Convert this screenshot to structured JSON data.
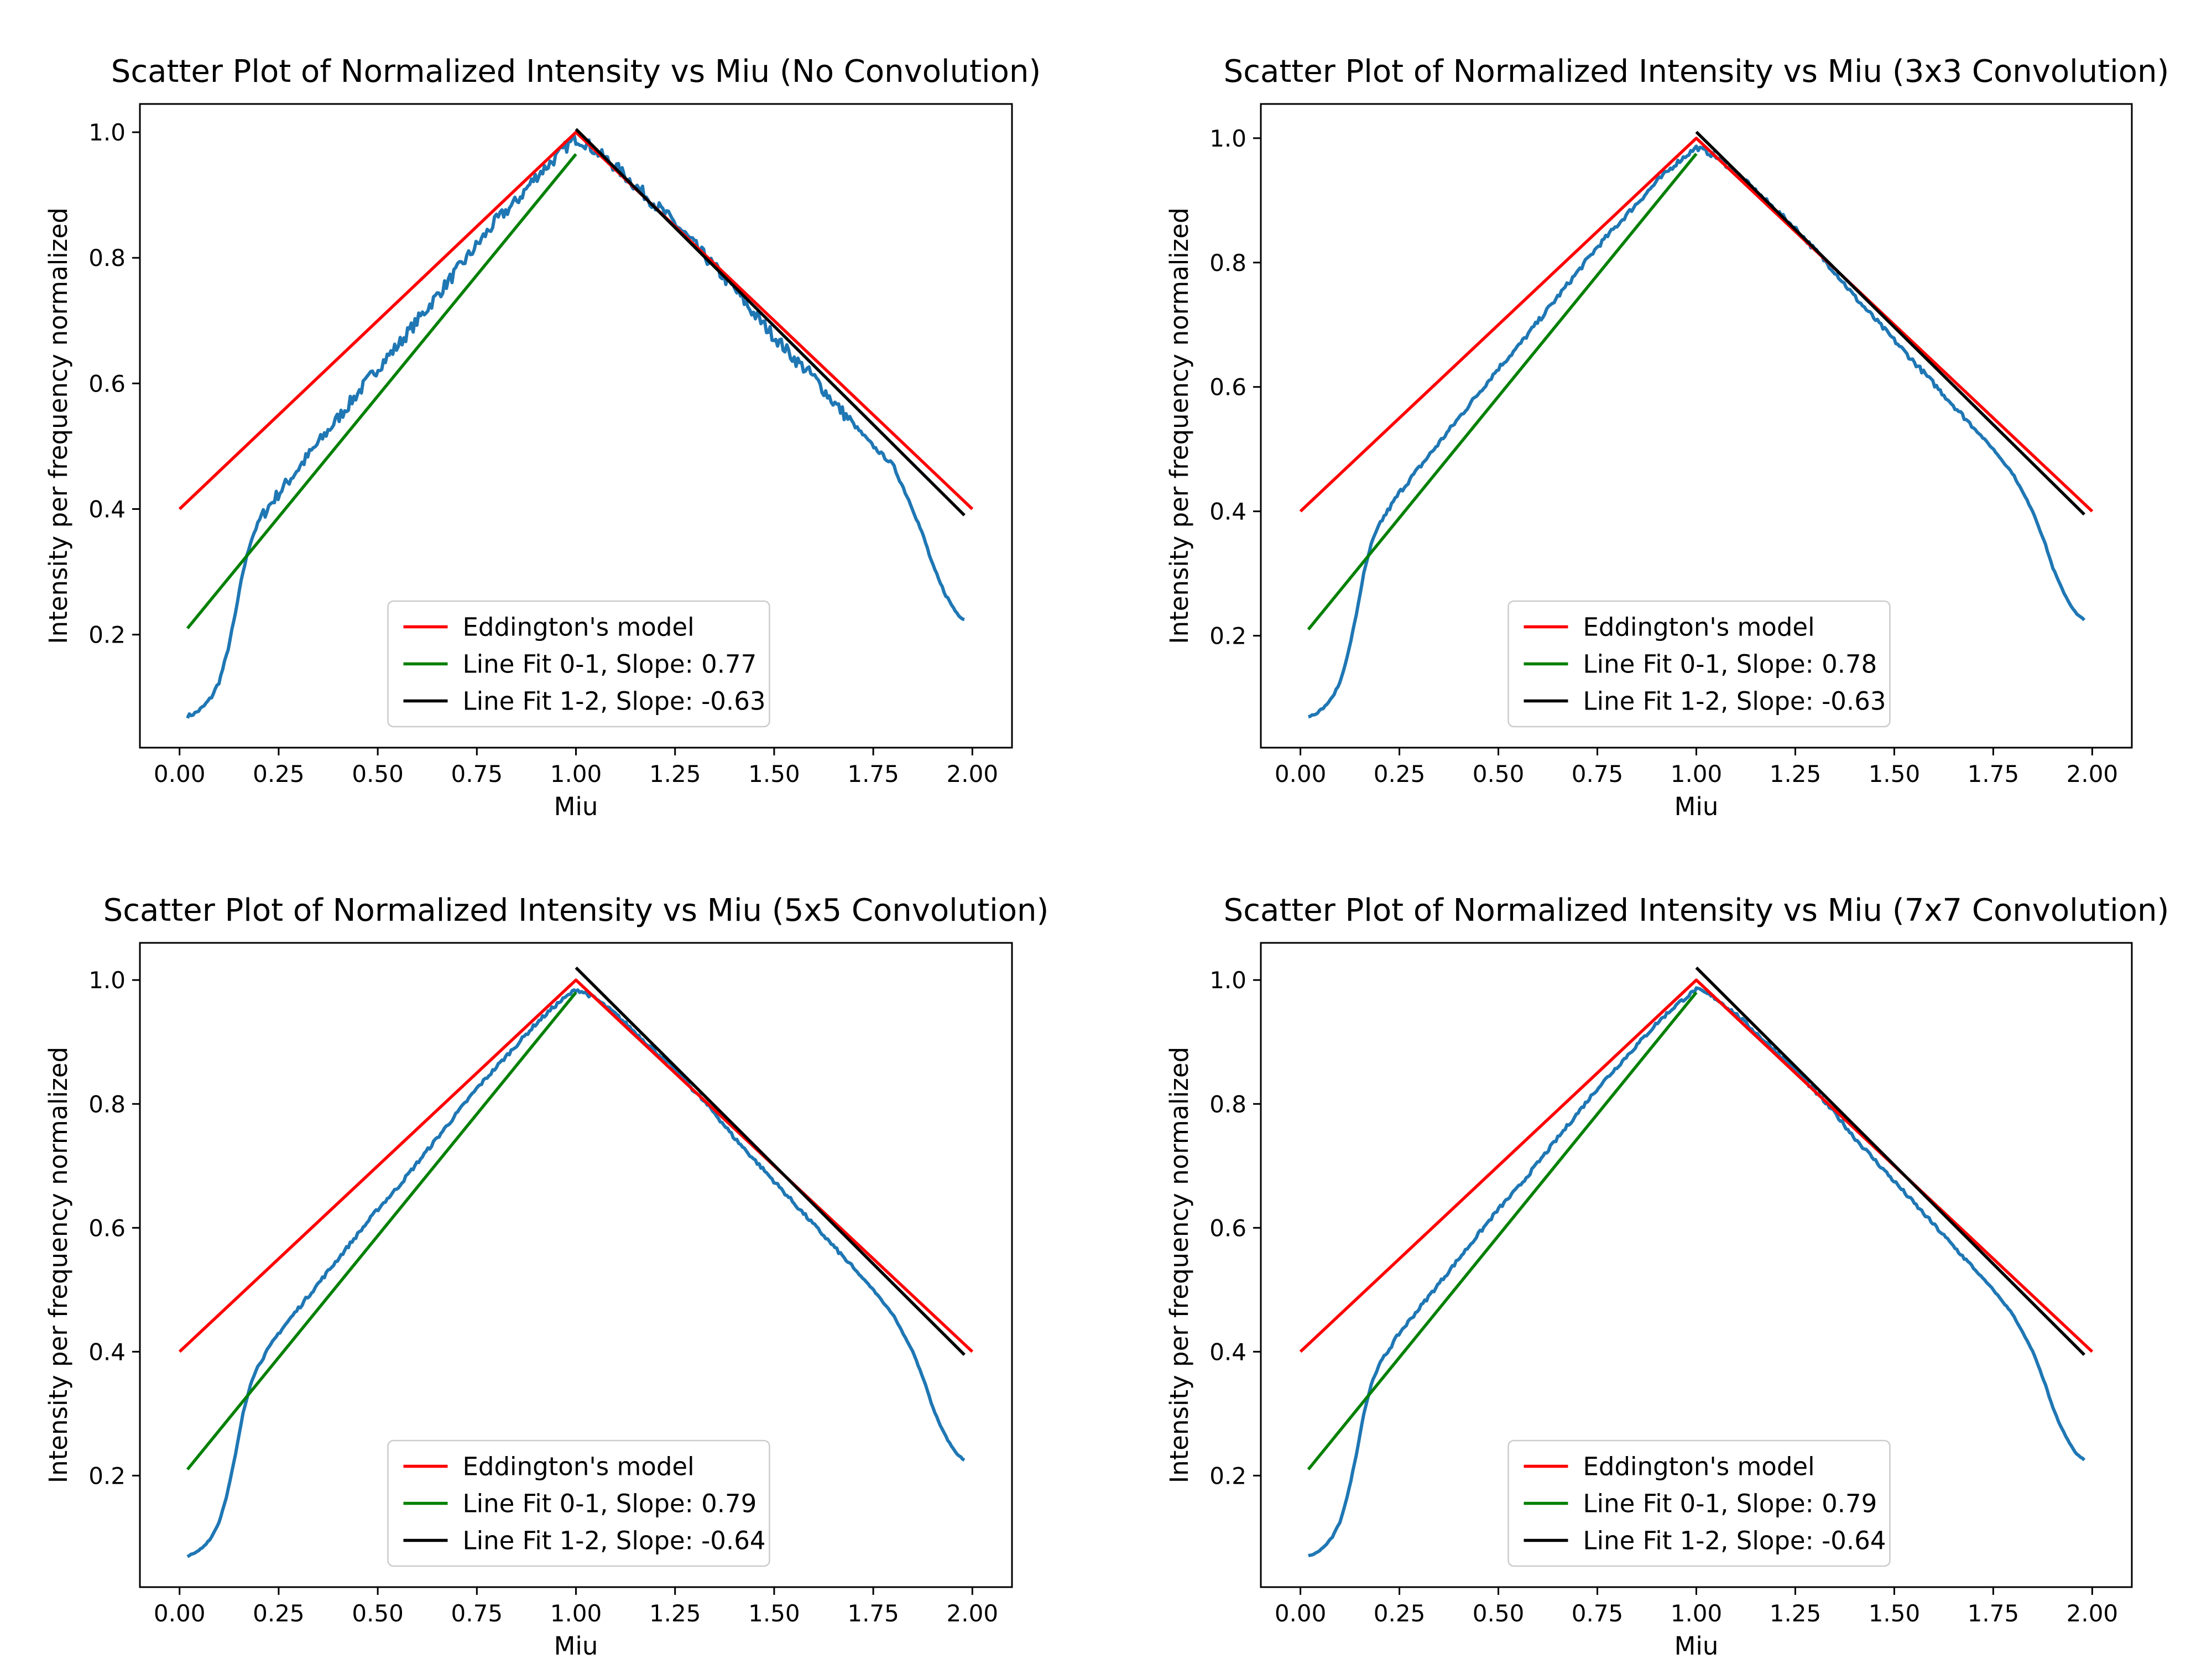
{
  "figure": {
    "background": "#ffffff",
    "colors": {
      "data": "#1f77b4",
      "eddington": "#ff0000",
      "fit_0_1": "#008000",
      "fit_1_2": "#000000"
    }
  },
  "chart_data": [
    {
      "type": "line",
      "title": "Scatter Plot of Normalized Intensity vs Miu (No Convolution)",
      "xlabel": "Miu",
      "ylabel": "Intensity per frequency normalized",
      "xlim": [
        -0.1,
        2.1
      ],
      "ylim": [
        0.02,
        1.045
      ],
      "xticks": [
        0.0,
        0.25,
        0.5,
        0.75,
        1.0,
        1.25,
        1.5,
        1.75,
        2.0
      ],
      "xtick_labels": [
        "0.00",
        "0.25",
        "0.50",
        "0.75",
        "1.00",
        "1.25",
        "1.50",
        "1.75",
        "2.00"
      ],
      "yticks": [
        0.2,
        0.4,
        0.6,
        0.8,
        1.0
      ],
      "ytick_labels": [
        "0.2",
        "0.4",
        "0.6",
        "0.8",
        "1.0"
      ],
      "grid": false,
      "legend_position": "lower center",
      "series": [
        {
          "role": "data",
          "noise": 0.01,
          "x": [
            0.02,
            0.04,
            0.06,
            0.08,
            0.1,
            0.12,
            0.14,
            0.16,
            0.18,
            0.2,
            0.22,
            0.25,
            0.3,
            0.35,
            0.4,
            0.45,
            0.5,
            0.55,
            0.6,
            0.65,
            0.7,
            0.75,
            0.8,
            0.85,
            0.9,
            0.95,
            0.98,
            1.0,
            1.02,
            1.05,
            1.1,
            1.15,
            1.2,
            1.25,
            1.3,
            1.35,
            1.4,
            1.45,
            1.5,
            1.55,
            1.6,
            1.65,
            1.7,
            1.75,
            1.8,
            1.85,
            1.88,
            1.9,
            1.92,
            1.94,
            1.96,
            1.98
          ],
          "y": [
            0.07,
            0.075,
            0.085,
            0.1,
            0.125,
            0.17,
            0.23,
            0.3,
            0.35,
            0.38,
            0.4,
            0.425,
            0.465,
            0.505,
            0.545,
            0.585,
            0.625,
            0.66,
            0.7,
            0.74,
            0.78,
            0.82,
            0.86,
            0.89,
            0.93,
            0.96,
            0.98,
            0.99,
            0.985,
            0.97,
            0.945,
            0.915,
            0.885,
            0.855,
            0.82,
            0.785,
            0.75,
            0.71,
            0.675,
            0.64,
            0.61,
            0.57,
            0.535,
            0.5,
            0.47,
            0.4,
            0.35,
            0.31,
            0.28,
            0.255,
            0.235,
            0.225
          ]
        },
        {
          "name": "Eddington's model",
          "role": "eddington",
          "x": [
            0.0,
            1.0,
            2.0
          ],
          "y": [
            0.4,
            1.0,
            0.4
          ]
        },
        {
          "name": "Line Fit 0-1, Slope: 0.77",
          "role": "fit_0_1",
          "x": [
            0.02,
            1.0
          ],
          "y": [
            0.21,
            0.965
          ]
        },
        {
          "name": "Line Fit 1-2, Slope: -0.63",
          "role": "fit_1_2",
          "x": [
            1.0,
            1.98
          ],
          "y": [
            1.005,
            0.39
          ]
        }
      ]
    },
    {
      "type": "line",
      "title": "Scatter Plot of Normalized Intensity vs Miu (3x3 Convolution)",
      "xlabel": "Miu",
      "ylabel": "Intensity per frequency normalized",
      "xlim": [
        -0.1,
        2.1
      ],
      "ylim": [
        0.02,
        1.055
      ],
      "xticks": [
        0.0,
        0.25,
        0.5,
        0.75,
        1.0,
        1.25,
        1.5,
        1.75,
        2.0
      ],
      "xtick_labels": [
        "0.00",
        "0.25",
        "0.50",
        "0.75",
        "1.00",
        "1.25",
        "1.50",
        "1.75",
        "2.00"
      ],
      "yticks": [
        0.2,
        0.4,
        0.6,
        0.8,
        1.0
      ],
      "ytick_labels": [
        "0.2",
        "0.4",
        "0.6",
        "0.8",
        "1.0"
      ],
      "grid": false,
      "legend_position": "lower center",
      "series": [
        {
          "role": "data",
          "noise": 0.004,
          "x": [
            0.02,
            0.04,
            0.06,
            0.08,
            0.1,
            0.12,
            0.14,
            0.16,
            0.18,
            0.2,
            0.22,
            0.25,
            0.3,
            0.35,
            0.4,
            0.45,
            0.5,
            0.55,
            0.6,
            0.65,
            0.7,
            0.75,
            0.8,
            0.85,
            0.9,
            0.95,
            0.98,
            1.0,
            1.02,
            1.05,
            1.1,
            1.15,
            1.2,
            1.25,
            1.3,
            1.35,
            1.4,
            1.45,
            1.5,
            1.55,
            1.6,
            1.65,
            1.7,
            1.75,
            1.8,
            1.85,
            1.88,
            1.9,
            1.92,
            1.94,
            1.96,
            1.98
          ],
          "y": [
            0.07,
            0.075,
            0.085,
            0.1,
            0.125,
            0.17,
            0.23,
            0.3,
            0.35,
            0.38,
            0.4,
            0.43,
            0.47,
            0.51,
            0.55,
            0.59,
            0.63,
            0.665,
            0.705,
            0.745,
            0.785,
            0.825,
            0.86,
            0.895,
            0.93,
            0.96,
            0.975,
            0.985,
            0.98,
            0.97,
            0.945,
            0.915,
            0.885,
            0.855,
            0.82,
            0.785,
            0.745,
            0.71,
            0.675,
            0.64,
            0.605,
            0.57,
            0.535,
            0.5,
            0.46,
            0.4,
            0.35,
            0.31,
            0.28,
            0.255,
            0.235,
            0.225
          ]
        },
        {
          "name": "Eddington's model",
          "role": "eddington",
          "x": [
            0.0,
            1.0,
            2.0
          ],
          "y": [
            0.4,
            1.0,
            0.4
          ]
        },
        {
          "name": "Line Fit 0-1, Slope: 0.78",
          "role": "fit_0_1",
          "x": [
            0.02,
            1.0
          ],
          "y": [
            0.21,
            0.975
          ]
        },
        {
          "name": "Line Fit 1-2, Slope: -0.63",
          "role": "fit_1_2",
          "x": [
            1.0,
            1.98
          ],
          "y": [
            1.01,
            0.395
          ]
        }
      ]
    },
    {
      "type": "line",
      "title": "Scatter Plot of Normalized Intensity vs Miu (5x5 Convolution)",
      "xlabel": "Miu",
      "ylabel": "Intensity per frequency normalized",
      "xlim": [
        -0.1,
        2.1
      ],
      "ylim": [
        0.02,
        1.06
      ],
      "xticks": [
        0.0,
        0.25,
        0.5,
        0.75,
        1.0,
        1.25,
        1.5,
        1.75,
        2.0
      ],
      "xtick_labels": [
        "0.00",
        "0.25",
        "0.50",
        "0.75",
        "1.00",
        "1.25",
        "1.50",
        "1.75",
        "2.00"
      ],
      "yticks": [
        0.2,
        0.4,
        0.6,
        0.8,
        1.0
      ],
      "ytick_labels": [
        "0.2",
        "0.4",
        "0.6",
        "0.8",
        "1.0"
      ],
      "grid": false,
      "legend_position": "lower center",
      "series": [
        {
          "role": "data",
          "noise": 0.003,
          "x": [
            0.02,
            0.04,
            0.06,
            0.08,
            0.1,
            0.12,
            0.14,
            0.16,
            0.18,
            0.2,
            0.22,
            0.25,
            0.3,
            0.35,
            0.4,
            0.45,
            0.5,
            0.55,
            0.6,
            0.65,
            0.7,
            0.75,
            0.8,
            0.85,
            0.9,
            0.95,
            0.98,
            1.0,
            1.02,
            1.05,
            1.1,
            1.15,
            1.2,
            1.25,
            1.3,
            1.35,
            1.4,
            1.45,
            1.5,
            1.55,
            1.6,
            1.65,
            1.7,
            1.75,
            1.8,
            1.85,
            1.88,
            1.9,
            1.92,
            1.94,
            1.96,
            1.98
          ],
          "y": [
            0.07,
            0.075,
            0.085,
            0.1,
            0.125,
            0.17,
            0.23,
            0.3,
            0.35,
            0.38,
            0.4,
            0.43,
            0.47,
            0.51,
            0.55,
            0.59,
            0.63,
            0.665,
            0.705,
            0.745,
            0.785,
            0.825,
            0.86,
            0.895,
            0.93,
            0.96,
            0.975,
            0.985,
            0.98,
            0.97,
            0.945,
            0.915,
            0.885,
            0.855,
            0.82,
            0.785,
            0.745,
            0.71,
            0.675,
            0.64,
            0.605,
            0.57,
            0.535,
            0.5,
            0.46,
            0.4,
            0.35,
            0.31,
            0.28,
            0.255,
            0.235,
            0.225
          ]
        },
        {
          "name": "Eddington's model",
          "role": "eddington",
          "x": [
            0.0,
            1.0,
            2.0
          ],
          "y": [
            0.4,
            1.0,
            0.4
          ]
        },
        {
          "name": "Line Fit 0-1, Slope: 0.79",
          "role": "fit_0_1",
          "x": [
            0.02,
            1.0
          ],
          "y": [
            0.21,
            0.98
          ]
        },
        {
          "name": "Line Fit 1-2, Slope: -0.64",
          "role": "fit_1_2",
          "x": [
            1.0,
            1.98
          ],
          "y": [
            1.02,
            0.395
          ]
        }
      ]
    },
    {
      "type": "line",
      "title": "Scatter Plot of Normalized Intensity vs Miu (7x7 Convolution)",
      "xlabel": "Miu",
      "ylabel": "Intensity per frequency normalized",
      "xlim": [
        -0.1,
        2.1
      ],
      "ylim": [
        0.02,
        1.06
      ],
      "xticks": [
        0.0,
        0.25,
        0.5,
        0.75,
        1.0,
        1.25,
        1.5,
        1.75,
        2.0
      ],
      "xtick_labels": [
        "0.00",
        "0.25",
        "0.50",
        "0.75",
        "1.00",
        "1.25",
        "1.50",
        "1.75",
        "2.00"
      ],
      "yticks": [
        0.2,
        0.4,
        0.6,
        0.8,
        1.0
      ],
      "ytick_labels": [
        "0.2",
        "0.4",
        "0.6",
        "0.8",
        "1.0"
      ],
      "grid": false,
      "legend_position": "lower center",
      "series": [
        {
          "role": "data",
          "noise": 0.003,
          "x": [
            0.02,
            0.04,
            0.06,
            0.08,
            0.1,
            0.12,
            0.14,
            0.16,
            0.18,
            0.2,
            0.22,
            0.25,
            0.3,
            0.35,
            0.4,
            0.45,
            0.5,
            0.55,
            0.6,
            0.65,
            0.7,
            0.75,
            0.8,
            0.85,
            0.9,
            0.95,
            0.98,
            1.0,
            1.02,
            1.05,
            1.1,
            1.15,
            1.2,
            1.25,
            1.3,
            1.35,
            1.4,
            1.45,
            1.5,
            1.55,
            1.6,
            1.65,
            1.7,
            1.75,
            1.8,
            1.85,
            1.88,
            1.9,
            1.92,
            1.94,
            1.96,
            1.98
          ],
          "y": [
            0.07,
            0.075,
            0.085,
            0.1,
            0.125,
            0.17,
            0.23,
            0.3,
            0.35,
            0.38,
            0.4,
            0.43,
            0.47,
            0.51,
            0.55,
            0.59,
            0.63,
            0.665,
            0.705,
            0.745,
            0.785,
            0.825,
            0.86,
            0.895,
            0.93,
            0.96,
            0.975,
            0.985,
            0.98,
            0.97,
            0.945,
            0.915,
            0.885,
            0.855,
            0.82,
            0.785,
            0.745,
            0.71,
            0.675,
            0.64,
            0.605,
            0.57,
            0.535,
            0.5,
            0.46,
            0.4,
            0.35,
            0.31,
            0.28,
            0.255,
            0.235,
            0.225
          ]
        },
        {
          "name": "Eddington's model",
          "role": "eddington",
          "x": [
            0.0,
            1.0,
            2.0
          ],
          "y": [
            0.4,
            1.0,
            0.4
          ]
        },
        {
          "name": "Line Fit 0-1, Slope: 0.79",
          "role": "fit_0_1",
          "x": [
            0.02,
            1.0
          ],
          "y": [
            0.21,
            0.98
          ]
        },
        {
          "name": "Line Fit 1-2, Slope: -0.64",
          "role": "fit_1_2",
          "x": [
            1.0,
            1.98
          ],
          "y": [
            1.02,
            0.395
          ]
        }
      ]
    }
  ]
}
